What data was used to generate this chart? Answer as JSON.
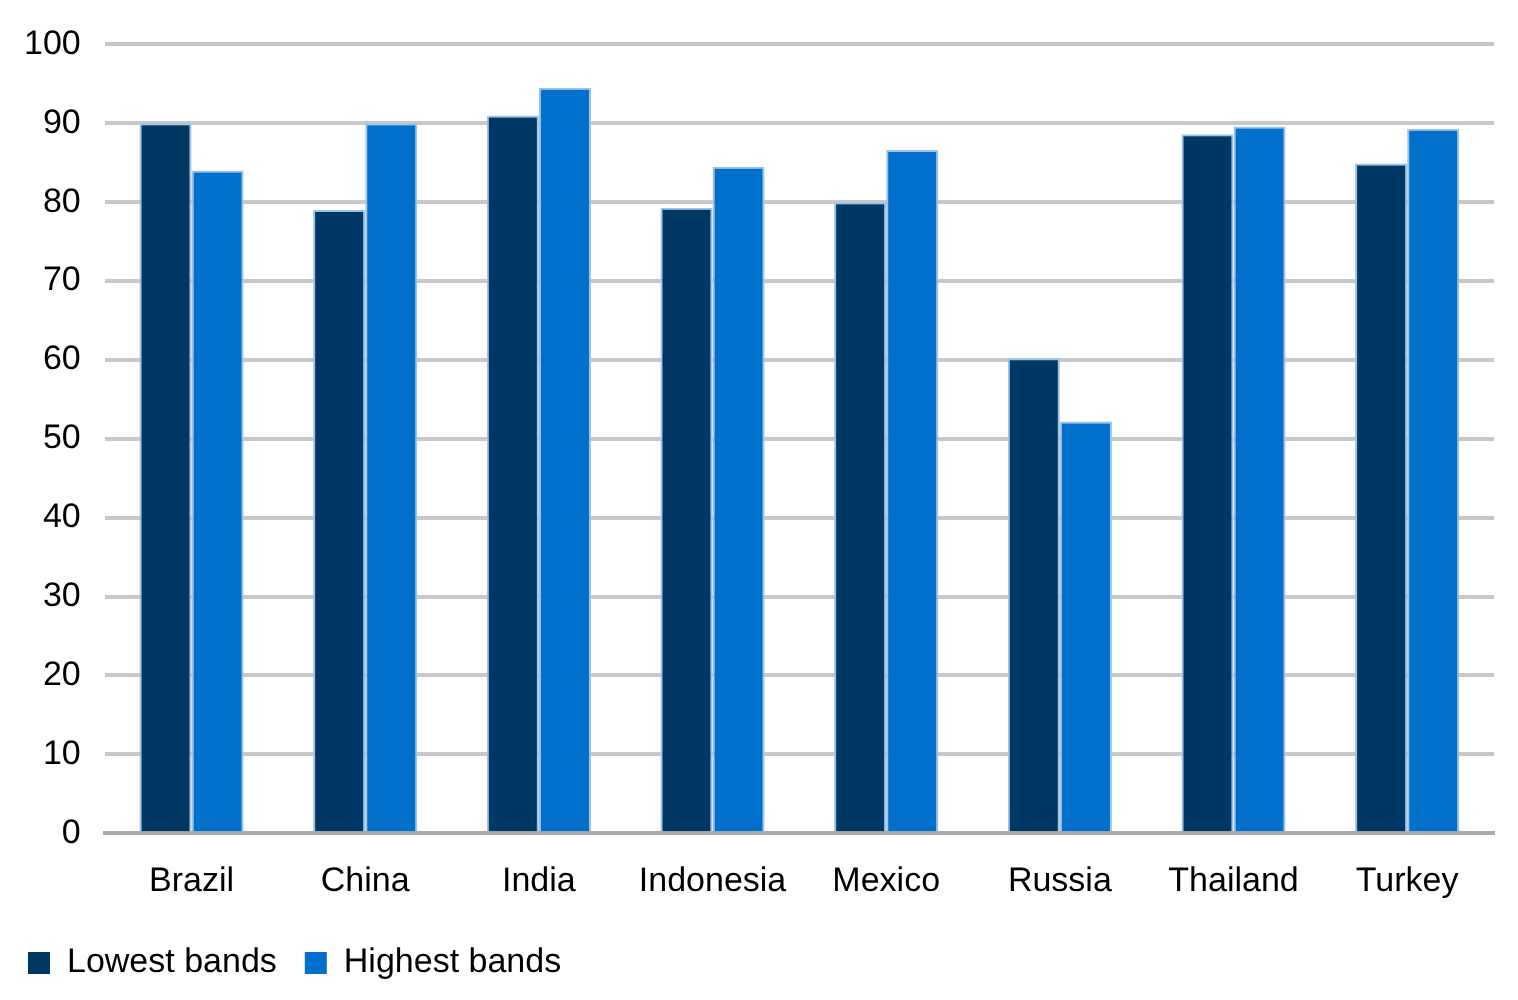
{
  "chart_data": {
    "type": "bar",
    "categories": [
      "Brazil",
      "China",
      "India",
      "Indonesia",
      "Mexico",
      "Russia",
      "Thailand",
      "Turkey"
    ],
    "series": [
      {
        "name": "Lowest bands",
        "color": "#003865",
        "values": [
          90,
          79,
          91,
          79.3,
          80,
          60.2,
          88.6,
          84.9
        ]
      },
      {
        "name": "Highest bands",
        "color": "#0070cc",
        "values": [
          84,
          90,
          94.5,
          84.5,
          86.6,
          52.2,
          89.6,
          89.3
        ]
      }
    ],
    "ylim": [
      0,
      100
    ],
    "yticks": [
      0,
      10,
      20,
      30,
      40,
      50,
      60,
      70,
      80,
      90,
      100
    ],
    "grid": "y",
    "legend": "bottom left"
  }
}
